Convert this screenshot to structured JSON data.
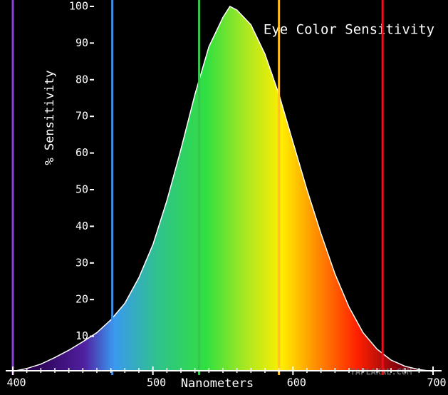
{
  "chart_data": {
    "type": "area",
    "title": "Eye Color Sensitivity",
    "xlabel": "Nanometers",
    "ylabel": "% Sensitivity",
    "x": [
      400,
      410,
      420,
      430,
      440,
      450,
      460,
      470,
      480,
      490,
      500,
      510,
      520,
      530,
      540,
      550,
      555,
      560,
      570,
      580,
      590,
      600,
      610,
      620,
      630,
      640,
      650,
      660,
      670,
      680,
      690,
      700
    ],
    "values": [
      0.4,
      1.2,
      2.4,
      4.2,
      6.2,
      8.5,
      11,
      14.5,
      19,
      26,
      35,
      47,
      61,
      76,
      89,
      97,
      100,
      99,
      95,
      87,
      76,
      63,
      50,
      38,
      27,
      18,
      11,
      6.5,
      3.5,
      1.8,
      0.9,
      0.4
    ],
    "xlim": [
      400,
      700
    ],
    "ylim": [
      0,
      100
    ],
    "xticks": [
      400,
      500,
      600,
      700
    ],
    "xminorticks": [
      410,
      420,
      430,
      440,
      450,
      460,
      470,
      480,
      490,
      510,
      520,
      530,
      540,
      550,
      560,
      570,
      580,
      590,
      610,
      620,
      630,
      640,
      650,
      660,
      670,
      680,
      690
    ],
    "yticks": [
      10,
      20,
      30,
      40,
      50,
      60,
      70,
      80,
      90,
      100
    ],
    "markers": [
      {
        "x": 400,
        "color": "#8a3fd8"
      },
      {
        "x": 471,
        "color": "#3f8fe8"
      },
      {
        "x": 533,
        "color": "#35c84a"
      },
      {
        "x": 590,
        "color": "#ffc020"
      },
      {
        "x": 664,
        "color": "#e8101a"
      }
    ],
    "watermark": "YAPLAKAL.COM"
  }
}
